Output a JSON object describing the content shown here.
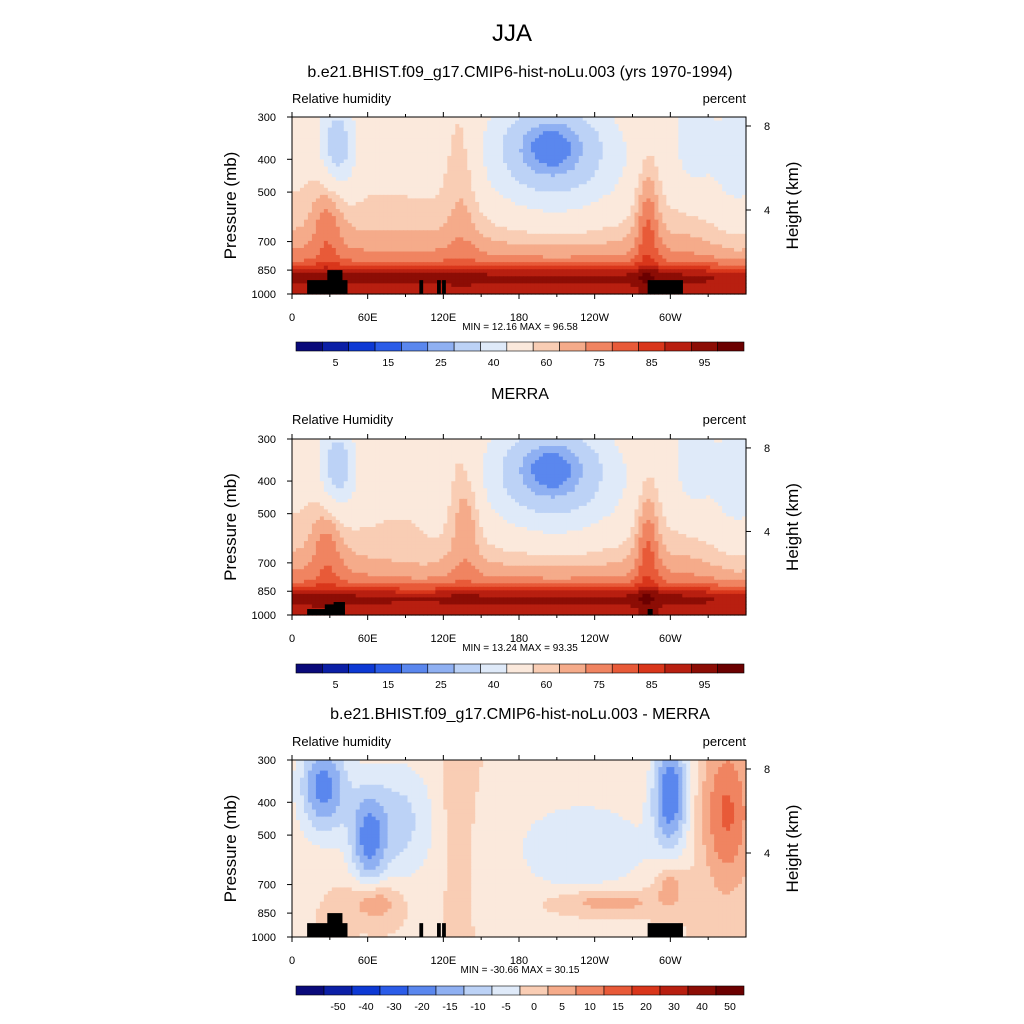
{
  "main_title": "JJA",
  "colors": {
    "rh_scale": [
      "#0a0a7a",
      "#0b1fa6",
      "#0d39d4",
      "#2b5ce8",
      "#5a87ee",
      "#8fb0f2",
      "#bcd2f6",
      "#dfeaf9",
      "#fbe9dc",
      "#f9cdb4",
      "#f5ab8a",
      "#f08461",
      "#e85a38",
      "#d9361b",
      "#b81f10",
      "#8c0d05",
      "#6b0000"
    ],
    "diff_scale": [
      "#0a0a7a",
      "#0b1fa6",
      "#0d39d4",
      "#2b5ce8",
      "#5a87ee",
      "#8fb0f2",
      "#bcd2f6",
      "#dfeaf9",
      "#fbe9dc",
      "#f9cdb4",
      "#f5ab8a",
      "#f08461",
      "#e85a38",
      "#d9361b",
      "#b81f10",
      "#8c0d05",
      "#6b0000"
    ],
    "terrain": "#000000"
  },
  "chart_data": [
    {
      "type": "heatmap",
      "title": "b.e21.BHIST.f09_g17.CMIP6-hist-noLu.003 (yrs 1970-1994)",
      "left_label": "Relative humidity",
      "right_label": "percent",
      "ylabel": "Pressure (mb)",
      "y2label": "Height (km)",
      "xticks": [
        "0",
        "60E",
        "120E",
        "180",
        "120W",
        "60W"
      ],
      "xtick_values": [
        0,
        60,
        120,
        180,
        240,
        300
      ],
      "xlim": [
        0,
        360
      ],
      "yticks": [
        "300",
        "400",
        "500",
        "700",
        "850",
        "1000"
      ],
      "ytick_values": [
        300,
        400,
        500,
        700,
        850,
        1000
      ],
      "y2ticks": [
        "8",
        "4"
      ],
      "y2tick_values": [
        8,
        4
      ],
      "ylim": [
        300,
        1000
      ],
      "min_text": "MIN =  12.16  MAX =  96.58",
      "min": 12.16,
      "max": 96.58,
      "colorbar_labels": [
        "5",
        "15",
        "25",
        "40",
        "60",
        "75",
        "85",
        "95"
      ],
      "colorbar_label_positions": [
        1,
        3,
        5,
        7,
        9,
        11,
        13,
        15
      ],
      "colorbar_bins": 17
    },
    {
      "type": "heatmap",
      "title": "MERRA",
      "left_label": "Relative Humidity",
      "right_label": "percent",
      "ylabel": "Pressure (mb)",
      "y2label": "Height (km)",
      "xticks": [
        "0",
        "60E",
        "120E",
        "180",
        "120W",
        "60W"
      ],
      "xtick_values": [
        0,
        60,
        120,
        180,
        240,
        300
      ],
      "xlim": [
        0,
        360
      ],
      "yticks": [
        "300",
        "400",
        "500",
        "700",
        "850",
        "1000"
      ],
      "ytick_values": [
        300,
        400,
        500,
        700,
        850,
        1000
      ],
      "y2ticks": [
        "8",
        "4"
      ],
      "y2tick_values": [
        8,
        4
      ],
      "ylim": [
        300,
        1000
      ],
      "min_text": "MIN =  13.24  MAX =  93.35",
      "min": 13.24,
      "max": 93.35,
      "colorbar_labels": [
        "5",
        "15",
        "25",
        "40",
        "60",
        "75",
        "85",
        "95"
      ],
      "colorbar_label_positions": [
        1,
        3,
        5,
        7,
        9,
        11,
        13,
        15
      ],
      "colorbar_bins": 17
    },
    {
      "type": "heatmap",
      "title": "b.e21.BHIST.f09_g17.CMIP6-hist-noLu.003 - MERRA",
      "left_label": "Relative humidity",
      "right_label": "percent",
      "ylabel": "Pressure (mb)",
      "y2label": "Height (km)",
      "xticks": [
        "0",
        "60E",
        "120E",
        "180",
        "120W",
        "60W"
      ],
      "xtick_values": [
        0,
        60,
        120,
        180,
        240,
        300
      ],
      "xlim": [
        0,
        360
      ],
      "yticks": [
        "300",
        "400",
        "500",
        "700",
        "850",
        "1000"
      ],
      "ytick_values": [
        300,
        400,
        500,
        700,
        850,
        1000
      ],
      "y2ticks": [
        "8",
        "4"
      ],
      "y2tick_values": [
        8,
        4
      ],
      "ylim": [
        300,
        1000
      ],
      "min_text": "MIN = -30.66  MAX =  30.15",
      "min": -30.66,
      "max": 30.15,
      "colorbar_labels": [
        "-50",
        "-40",
        "-30",
        "-20",
        "-15",
        "-10",
        "-5",
        "0",
        "5",
        "10",
        "15",
        "20",
        "30",
        "40",
        "50"
      ],
      "colorbar_label_positions": [
        1,
        2,
        3,
        4,
        5,
        6,
        7,
        8,
        9,
        10,
        11,
        12,
        13,
        14,
        15
      ],
      "colorbar_bins": 16
    }
  ]
}
